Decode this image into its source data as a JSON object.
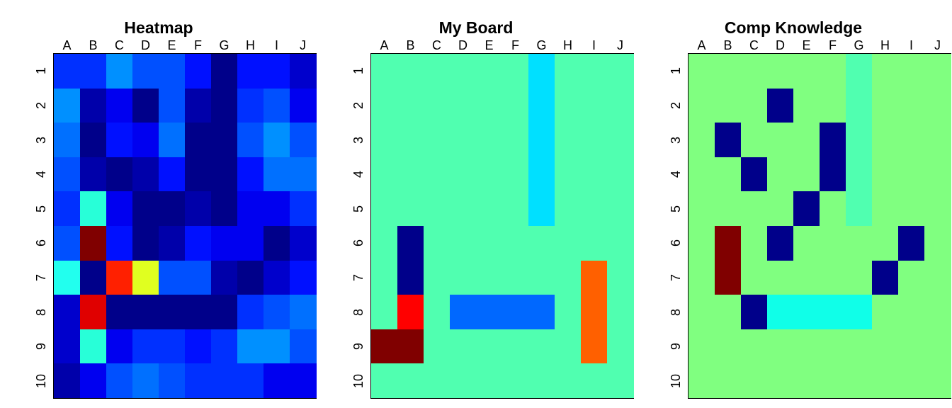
{
  "columns": [
    "A",
    "B",
    "C",
    "D",
    "E",
    "F",
    "G",
    "H",
    "I",
    "J"
  ],
  "rows": [
    "1",
    "2",
    "3",
    "4",
    "5",
    "6",
    "7",
    "8",
    "9",
    "10"
  ],
  "colors": {
    "heatmap": {
      "0": "#00008A",
      "1": "#0000AA",
      "2": "#0000CC",
      "3": "#0000F0",
      "4": "#0010FF",
      "5": "#0030FF",
      "6": "#0050FF",
      "7": "#0070FF",
      "8": "#0090FF",
      "9": "#28FFD8",
      "10": "#22FFEE",
      "11": "#E0FF20",
      "12": "#FF2000",
      "13": "#E00000",
      "14": "#800000"
    },
    "board": {
      "w": "#50FFB0",
      "s": "#00E0FF",
      "n": "#00008A",
      "r": "#FF0000",
      "b": "#0068FF",
      "o": "#FF6000",
      "m": "#800000"
    },
    "knowledge": {
      "u": "#80FF80",
      "t": "#50FFB0",
      "x": "#00008A",
      "c": "#10FFE8",
      "m": "#800000"
    }
  },
  "panels": [
    {
      "title": "Heatmap",
      "palette": "heatmap",
      "grid": [
        [
          5,
          5,
          8,
          6,
          6,
          4,
          0,
          4,
          4,
          2
        ],
        [
          8,
          1,
          3,
          0,
          6,
          1,
          0,
          5,
          6,
          3
        ],
        [
          7,
          0,
          4,
          3,
          7,
          0,
          0,
          6,
          8,
          6
        ],
        [
          6,
          1,
          0,
          1,
          4,
          0,
          0,
          4,
          7,
          7
        ],
        [
          5,
          9,
          3,
          0,
          0,
          1,
          0,
          3,
          3,
          5
        ],
        [
          6,
          14,
          4,
          0,
          1,
          4,
          3,
          3,
          0,
          2
        ],
        [
          10,
          0,
          12,
          11,
          6,
          6,
          1,
          0,
          2,
          4
        ],
        [
          2,
          13,
          0,
          0,
          0,
          0,
          0,
          5,
          6,
          7
        ],
        [
          2,
          9,
          3,
          5,
          5,
          4,
          5,
          8,
          8,
          6
        ],
        [
          1,
          3,
          6,
          7,
          6,
          5,
          5,
          5,
          3,
          3
        ]
      ]
    },
    {
      "title": "My Board",
      "palette": "board",
      "grid": [
        [
          "w",
          "w",
          "w",
          "w",
          "w",
          "w",
          "s",
          "w",
          "w",
          "w"
        ],
        [
          "w",
          "w",
          "w",
          "w",
          "w",
          "w",
          "s",
          "w",
          "w",
          "w"
        ],
        [
          "w",
          "w",
          "w",
          "w",
          "w",
          "w",
          "s",
          "w",
          "w",
          "w"
        ],
        [
          "w",
          "w",
          "w",
          "w",
          "w",
          "w",
          "s",
          "w",
          "w",
          "w"
        ],
        [
          "w",
          "w",
          "w",
          "w",
          "w",
          "w",
          "s",
          "w",
          "w",
          "w"
        ],
        [
          "w",
          "n",
          "w",
          "w",
          "w",
          "w",
          "w",
          "w",
          "w",
          "w"
        ],
        [
          "w",
          "n",
          "w",
          "w",
          "w",
          "w",
          "w",
          "w",
          "o",
          "w"
        ],
        [
          "w",
          "r",
          "w",
          "b",
          "b",
          "b",
          "b",
          "w",
          "o",
          "w"
        ],
        [
          "m",
          "m",
          "w",
          "w",
          "w",
          "w",
          "w",
          "w",
          "o",
          "w"
        ],
        [
          "w",
          "w",
          "w",
          "w",
          "w",
          "w",
          "w",
          "w",
          "w",
          "w"
        ]
      ]
    },
    {
      "title": "Comp Knowledge",
      "palette": "knowledge",
      "grid": [
        [
          "u",
          "u",
          "u",
          "u",
          "u",
          "u",
          "t",
          "u",
          "u",
          "u"
        ],
        [
          "u",
          "u",
          "u",
          "x",
          "u",
          "u",
          "t",
          "u",
          "u",
          "u"
        ],
        [
          "u",
          "x",
          "u",
          "u",
          "u",
          "x",
          "t",
          "u",
          "u",
          "u"
        ],
        [
          "u",
          "u",
          "x",
          "u",
          "u",
          "x",
          "t",
          "u",
          "u",
          "u"
        ],
        [
          "u",
          "u",
          "u",
          "u",
          "x",
          "u",
          "t",
          "u",
          "u",
          "u"
        ],
        [
          "u",
          "m",
          "u",
          "x",
          "u",
          "u",
          "u",
          "u",
          "x",
          "u"
        ],
        [
          "u",
          "m",
          "u",
          "u",
          "u",
          "u",
          "u",
          "x",
          "u",
          "u"
        ],
        [
          "u",
          "u",
          "x",
          "c",
          "c",
          "c",
          "c",
          "u",
          "u",
          "u"
        ],
        [
          "u",
          "u",
          "u",
          "u",
          "u",
          "u",
          "u",
          "u",
          "u",
          "u"
        ],
        [
          "u",
          "u",
          "u",
          "u",
          "u",
          "u",
          "u",
          "u",
          "u",
          "u"
        ]
      ]
    }
  ]
}
